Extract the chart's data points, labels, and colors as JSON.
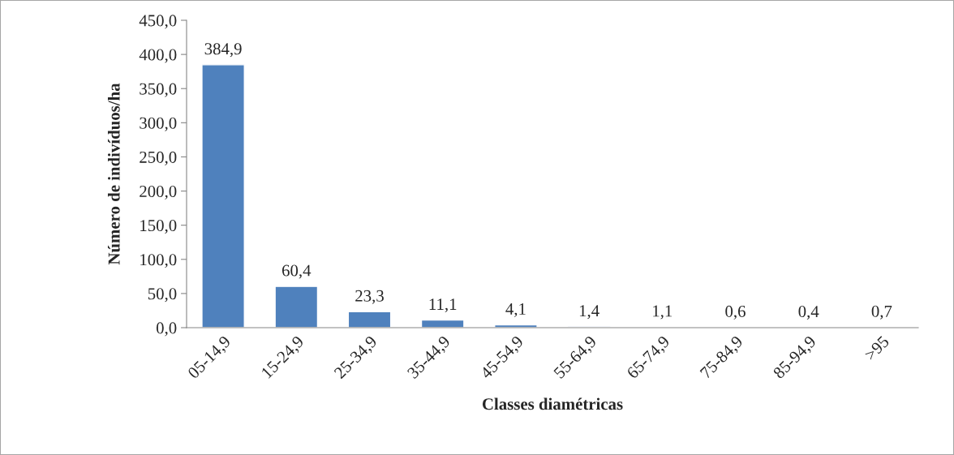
{
  "chart_data": {
    "type": "bar",
    "xlabel": "Classes diamétricas",
    "ylabel": "Número de indivíduos/ha",
    "categories": [
      "05-14,9",
      "15-24,9",
      "25-34,9",
      "35-44,9",
      "45-54,9",
      "55-64,9",
      "65-74,9",
      "75-84,9",
      "85-94,9",
      ">95"
    ],
    "values": [
      384.9,
      60.4,
      23.3,
      11.1,
      4.1,
      1.4,
      1.1,
      0.6,
      0.4,
      0.7
    ],
    "value_labels": [
      "384,9",
      "60,4",
      "23,3",
      "11,1",
      "4,1",
      "1,4",
      "1,1",
      "0,6",
      "0,4",
      "0,7"
    ],
    "color": "#4f81bd",
    "ylim": [
      0,
      450
    ],
    "yticks": [
      {
        "value": 0,
        "label": "0,0"
      },
      {
        "value": 50,
        "label": "50,0"
      },
      {
        "value": 100,
        "label": "100,0"
      },
      {
        "value": 150,
        "label": "150,0"
      },
      {
        "value": 200,
        "label": "200,0"
      },
      {
        "value": 250,
        "label": "250,0"
      },
      {
        "value": 300,
        "label": "300,0"
      },
      {
        "value": 350,
        "label": "350,0"
      },
      {
        "value": 400,
        "label": "400,0"
      },
      {
        "value": 450,
        "label": "450,0"
      }
    ],
    "grid": false,
    "legend": false
  }
}
